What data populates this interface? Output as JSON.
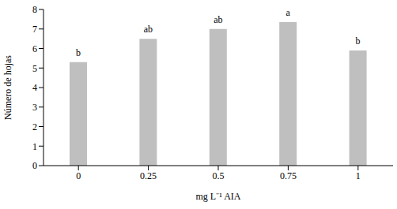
{
  "chart_data": {
    "type": "bar",
    "x_label": "mg L⁻¹ AIA",
    "y_label": "Número de hojas",
    "categories": [
      "0",
      "0.25",
      "0.5",
      "0.75",
      "1"
    ],
    "values": [
      5.3,
      6.5,
      7.0,
      7.35,
      5.9
    ],
    "annotations": [
      "b",
      "ab",
      "ab",
      "a",
      "b"
    ],
    "color": "#bfbfbf",
    "ylim": [
      0,
      8
    ],
    "yticks": [
      0,
      1,
      2,
      3,
      4,
      5,
      6,
      7,
      8
    ],
    "grid": false
  }
}
